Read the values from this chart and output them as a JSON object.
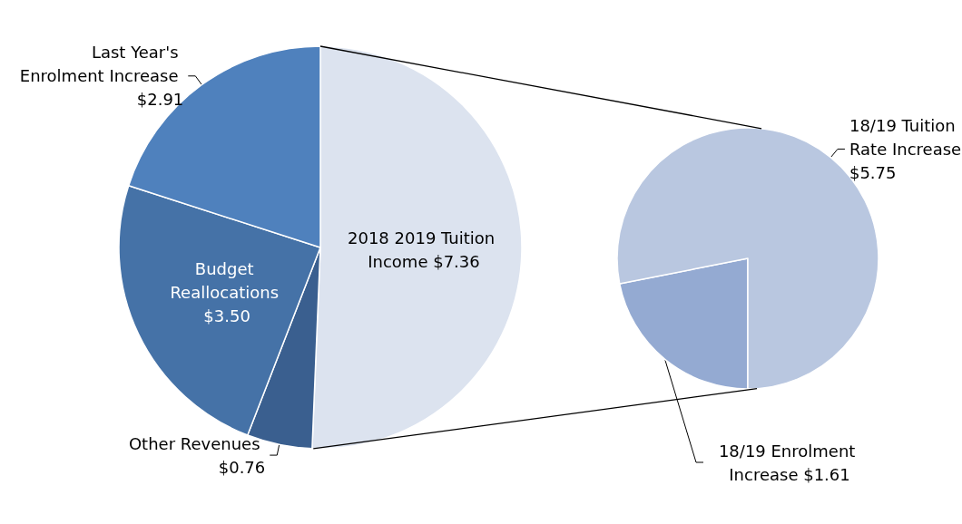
{
  "chart_data": [
    {
      "type": "pie",
      "categories": [
        "2018 2019 Tuition Income",
        "Other Revenues",
        "Budget Reallocations",
        "Last Year's Enrolment Increase"
      ],
      "values": [
        7.36,
        0.76,
        3.5,
        2.91
      ],
      "value_labels": [
        "$7.36",
        "$0.76",
        "$3.50",
        "$2.91"
      ],
      "colors": [
        "#dce3ef",
        "#3a5f8f",
        "#4572a7",
        "#4f81bd"
      ]
    },
    {
      "type": "pie",
      "categories": [
        "18/19 Enrolment Increase",
        "18/19 Tuition Rate Increase"
      ],
      "values": [
        1.61,
        5.75
      ],
      "value_labels": [
        "$1.61",
        "$5.75"
      ],
      "colors": [
        "#94aad2",
        "#b9c7e0"
      ]
    }
  ]
}
